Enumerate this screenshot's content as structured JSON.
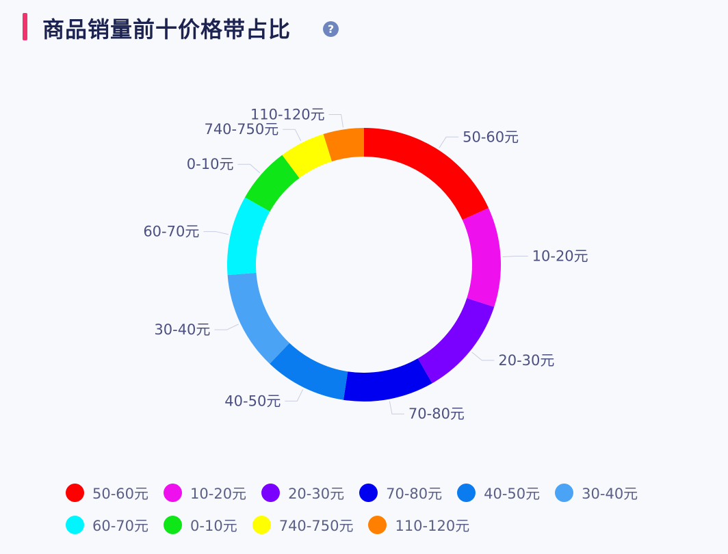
{
  "header": {
    "title": "商品销量前十价格带占比",
    "help_icon": "?"
  },
  "chart_data": {
    "type": "pie",
    "variant": "donut",
    "title": "商品销量前十价格带占比",
    "legend_position": "bottom",
    "unit": "percent (estimated)",
    "categories": [
      "50-60元",
      "10-20元",
      "20-30元",
      "70-80元",
      "40-50元",
      "30-40元",
      "60-70元",
      "0-10元",
      "740-750元",
      "110-120元"
    ],
    "values": [
      18.2,
      11.8,
      11.7,
      10.7,
      9.7,
      11.7,
      9.4,
      6.6,
      5.4,
      4.8
    ],
    "colors": [
      "#ff0000",
      "#ee11ee",
      "#7a00ff",
      "#0000f0",
      "#0a7cf0",
      "#4ba3f5",
      "#00f5ff",
      "#0fe617",
      "#ffff00",
      "#ff8000"
    ]
  }
}
